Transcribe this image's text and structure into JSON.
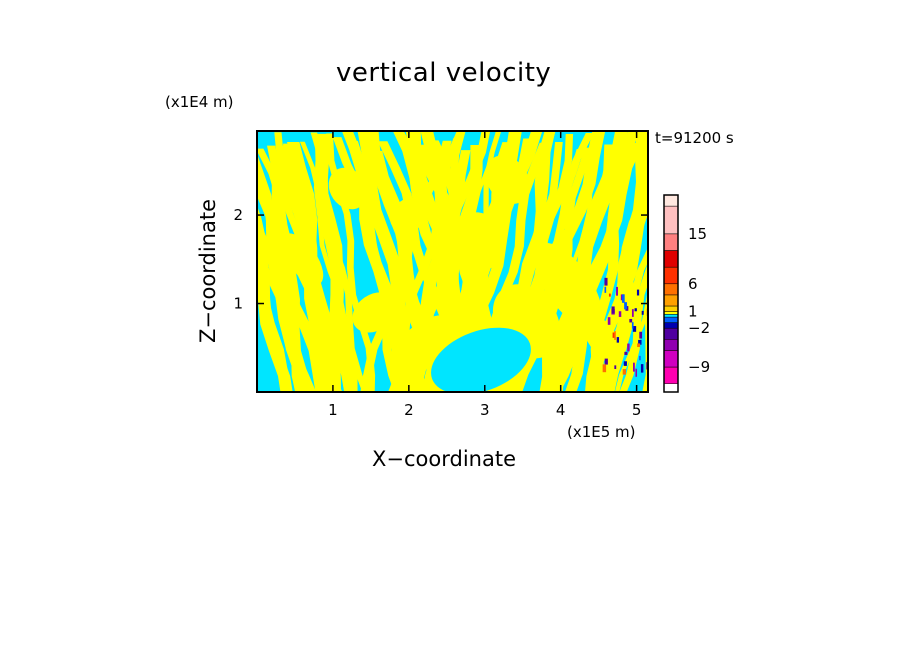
{
  "chart_data": {
    "type": "heatmap",
    "title": "vertical velocity",
    "xlabel": "X−coordinate",
    "ylabel": "Z−coordinate",
    "x_unit": "(x1E5 m)",
    "z_unit": "(x1E4 m)",
    "time_label": "t=91200 s",
    "xlim": [
      0,
      5.15
    ],
    "zlim": [
      0,
      2.95
    ],
    "x_ticks": [
      1,
      2,
      3,
      4,
      5
    ],
    "x_tick_labels": [
      "1",
      "2",
      "3",
      "4",
      "5"
    ],
    "z_ticks": [
      1,
      2
    ],
    "z_tick_labels": [
      "1",
      "2"
    ],
    "colors": {
      "positive_weak": "#ffff00",
      "negative_weak": "#00e5ff",
      "frame": "#000000"
    },
    "colorbar": {
      "levels": [
        {
          "value": -12,
          "color": "#ff00b0"
        },
        {
          "value": -9,
          "color": "#d000c0"
        },
        {
          "value": -6,
          "color": "#9000b0"
        },
        {
          "value": -4,
          "color": "#5000a0"
        },
        {
          "value": -2,
          "color": "#0000b0"
        },
        {
          "value": -1,
          "color": "#0060ff"
        },
        {
          "value": 0,
          "color": "#00e5ff"
        },
        {
          "value": 0.5,
          "color": "#ffff00"
        },
        {
          "value": 1,
          "color": "#ffd000"
        },
        {
          "value": 2,
          "color": "#ffa000"
        },
        {
          "value": 4,
          "color": "#ff7000"
        },
        {
          "value": 6,
          "color": "#ff3000"
        },
        {
          "value": 9,
          "color": "#e00000"
        },
        {
          "value": 12,
          "color": "#ff8080"
        },
        {
          "value": 15,
          "color": "#ffc0c0"
        },
        {
          "value": 20,
          "color": "#ffe8e0"
        }
      ],
      "tick_labels": [
        "15",
        "6",
        "1",
        "−2",
        "−9"
      ],
      "tick_values": [
        15,
        6,
        1,
        -2,
        -9
      ]
    }
  }
}
